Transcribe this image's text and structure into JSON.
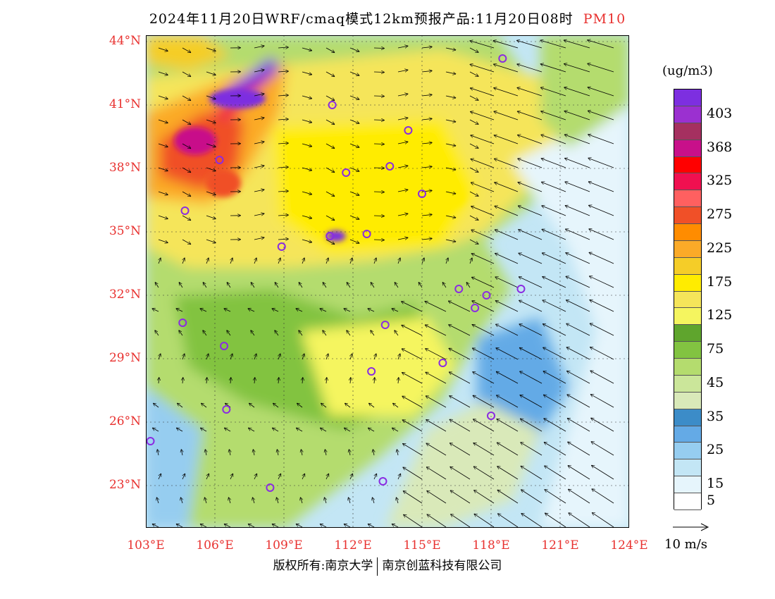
{
  "header": {
    "title": "2024年11月20日WRF/cmaq模式12km预报产品:11月20日08时",
    "product": "PM10"
  },
  "map": {
    "lat_labels": [
      "44°N",
      "41°N",
      "38°N",
      "35°N",
      "32°N",
      "29°N",
      "26°N",
      "23°N"
    ],
    "lon_labels": [
      "103°E",
      "106°E",
      "109°E",
      "112°E",
      "115°E",
      "118°E",
      "121°E",
      "124°E"
    ],
    "lat_range": [
      21,
      44.3
    ],
    "lon_range": [
      103,
      124
    ],
    "stations": [
      {
        "lon": 111.1,
        "lat": 41.0
      },
      {
        "lon": 114.4,
        "lat": 39.8
      },
      {
        "lon": 113.6,
        "lat": 38.1
      },
      {
        "lon": 111.7,
        "lat": 37.8
      },
      {
        "lon": 106.2,
        "lat": 38.4
      },
      {
        "lon": 104.7,
        "lat": 36.0
      },
      {
        "lon": 115.0,
        "lat": 36.8
      },
      {
        "lon": 112.6,
        "lat": 34.9
      },
      {
        "lon": 111.0,
        "lat": 34.8
      },
      {
        "lon": 108.9,
        "lat": 34.3
      },
      {
        "lon": 116.6,
        "lat": 32.3
      },
      {
        "lon": 117.8,
        "lat": 32.0
      },
      {
        "lon": 119.3,
        "lat": 32.3
      },
      {
        "lon": 117.3,
        "lat": 31.4
      },
      {
        "lon": 104.6,
        "lat": 30.7
      },
      {
        "lon": 113.4,
        "lat": 30.6
      },
      {
        "lon": 106.4,
        "lat": 29.6
      },
      {
        "lon": 115.9,
        "lat": 28.8
      },
      {
        "lon": 112.8,
        "lat": 28.4
      },
      {
        "lon": 118.0,
        "lat": 26.3
      },
      {
        "lon": 106.5,
        "lat": 26.6
      },
      {
        "lon": 103.2,
        "lat": 25.1
      },
      {
        "lon": 108.4,
        "lat": 22.9
      },
      {
        "lon": 113.3,
        "lat": 23.2
      },
      {
        "lon": 118.5,
        "lat": 43.2
      }
    ]
  },
  "legend": {
    "unit": "(ug/m3)",
    "colors": [
      "#7d2fe0",
      "#9b30d0",
      "#a53060",
      "#c8108a",
      "#ff0000",
      "#f01050",
      "#ff6060",
      "#f05028",
      "#ff8c00",
      "#fbaa28",
      "#f5cd28",
      "#ffec00",
      "#f5e55a",
      "#f5f55f",
      "#5fa52d",
      "#82c341",
      "#b4dc6e",
      "#cbe69a",
      "#d9e9b9",
      "#3c8cc8",
      "#64aae6",
      "#96cdf0",
      "#c3e6f5",
      "#e6f5fc",
      "#ffffff"
    ],
    "tick_labels": [
      "403",
      "368",
      "325",
      "275",
      "225",
      "175",
      "125",
      "75",
      "45",
      "35",
      "25",
      "15",
      "5"
    ]
  },
  "wind": {
    "reference": "10 m/s"
  },
  "footer": {
    "left": "版权所有:南京大学",
    "right": "南京创蓝科技有限公司"
  }
}
